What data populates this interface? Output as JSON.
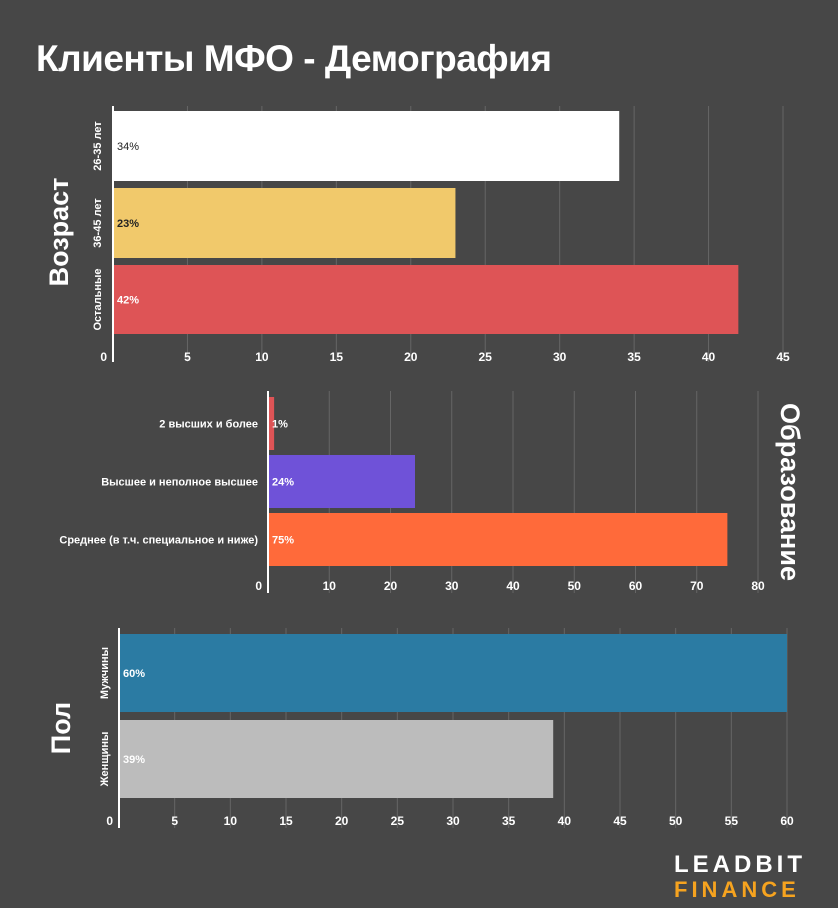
{
  "page": {
    "title": "Клиенты МФО - Демография",
    "logo_line1": "LEADBIT",
    "logo_line2": "FINANCE"
  },
  "colors": {
    "background": "#474747",
    "grid": "#666666",
    "axis": "#ffffff",
    "logo_accent": "#f6a31f"
  },
  "chart_data": [
    {
      "type": "bar",
      "orientation": "horizontal",
      "title": "Возраст",
      "categories": [
        "26-35 лет",
        "36-45 лет",
        "Остальные"
      ],
      "values": [
        34,
        23,
        42
      ],
      "data_labels": [
        "34%",
        "23%",
        "42%"
      ],
      "colors": [
        "#ffffff",
        "#f1c96b",
        "#de5456"
      ],
      "label_colors": [
        "#222222",
        "#222222",
        "#ffffff"
      ],
      "xlim": [
        0,
        45
      ],
      "xticks": [
        0,
        5,
        10,
        15,
        20,
        25,
        30,
        35,
        40,
        45
      ],
      "grid": true
    },
    {
      "type": "bar",
      "orientation": "horizontal",
      "title": "Образование",
      "categories": [
        "2 высших и более",
        "Высшее и неполное высшее",
        "Среднее (в т.ч. специальное и ниже)"
      ],
      "values": [
        1,
        24,
        75
      ],
      "data_labels": [
        "1%",
        "24%",
        "75%"
      ],
      "colors": [
        "#de5456",
        "#6f52d8",
        "#ff6a3a"
      ],
      "label_colors": [
        "#ffffff",
        "#ffffff",
        "#ffffff"
      ],
      "xlim": [
        0,
        80
      ],
      "xticks": [
        0,
        10,
        20,
        30,
        40,
        50,
        60,
        70,
        80
      ],
      "grid": true
    },
    {
      "type": "bar",
      "orientation": "horizontal",
      "title": "Пол",
      "categories": [
        "Мужчины",
        "Женщины"
      ],
      "values": [
        60,
        39
      ],
      "data_labels": [
        "60%",
        "39%"
      ],
      "colors": [
        "#2b7ba3",
        "#bcbcbc"
      ],
      "label_colors": [
        "#ffffff",
        "#ffffff"
      ],
      "xlim": [
        0,
        60
      ],
      "xticks": [
        0,
        5,
        10,
        15,
        20,
        25,
        30,
        35,
        40,
        45,
        50,
        55,
        60
      ],
      "grid": true
    }
  ]
}
